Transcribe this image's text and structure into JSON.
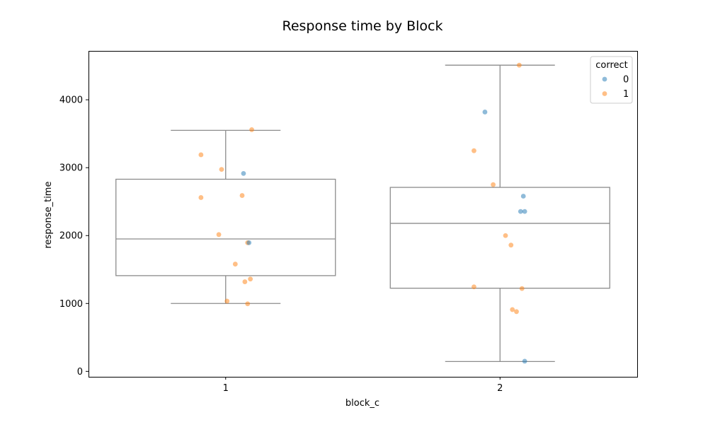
{
  "chart_data": {
    "type": "box",
    "title": "Response time by Block",
    "xlabel": "block_c",
    "ylabel": "response_time",
    "categories": [
      "1",
      "2"
    ],
    "ylim": [
      -80,
      4720
    ],
    "yticks": [
      0,
      1000,
      2000,
      3000,
      4000
    ],
    "grid": false,
    "legend": {
      "title": "correct",
      "placement": "top-right",
      "entries": [
        {
          "label": "0",
          "color": "#1f77b4"
        },
        {
          "label": "1",
          "color": "#ff7f0e"
        }
      ]
    },
    "box_color": "#8c8c8c",
    "boxes": [
      {
        "category": "1",
        "whisker_low": 1000,
        "q1": 1410,
        "median": 1950,
        "q3": 2830,
        "whisker_high": 3550
      },
      {
        "category": "2",
        "whisker_low": 145,
        "q1": 1225,
        "median": 2180,
        "q3": 2710,
        "whisker_high": 4510
      }
    ],
    "points": [
      {
        "category": "1",
        "x_offset": 0.095,
        "y": 3560,
        "correct": "1"
      },
      {
        "category": "1",
        "x_offset": -0.09,
        "y": 3190,
        "correct": "1"
      },
      {
        "category": "1",
        "x_offset": -0.015,
        "y": 2975,
        "correct": "1"
      },
      {
        "category": "1",
        "x_offset": 0.065,
        "y": 2915,
        "correct": "0"
      },
      {
        "category": "1",
        "x_offset": -0.09,
        "y": 2560,
        "correct": "1"
      },
      {
        "category": "1",
        "x_offset": 0.06,
        "y": 2590,
        "correct": "1"
      },
      {
        "category": "1",
        "x_offset": -0.025,
        "y": 2015,
        "correct": "1"
      },
      {
        "category": "1",
        "x_offset": 0.08,
        "y": 1895,
        "correct": "1"
      },
      {
        "category": "1",
        "x_offset": 0.085,
        "y": 1895,
        "correct": "0"
      },
      {
        "category": "1",
        "x_offset": 0.035,
        "y": 1580,
        "correct": "1"
      },
      {
        "category": "1",
        "x_offset": 0.09,
        "y": 1360,
        "correct": "1"
      },
      {
        "category": "1",
        "x_offset": 0.07,
        "y": 1320,
        "correct": "1"
      },
      {
        "category": "1",
        "x_offset": 0.005,
        "y": 1035,
        "correct": "1"
      },
      {
        "category": "1",
        "x_offset": 0.08,
        "y": 995,
        "correct": "1"
      },
      {
        "category": "2",
        "x_offset": 0.07,
        "y": 4510,
        "correct": "1"
      },
      {
        "category": "2",
        "x_offset": -0.055,
        "y": 3820,
        "correct": "0"
      },
      {
        "category": "2",
        "x_offset": -0.095,
        "y": 3250,
        "correct": "1"
      },
      {
        "category": "2",
        "x_offset": -0.025,
        "y": 2750,
        "correct": "1"
      },
      {
        "category": "2",
        "x_offset": 0.085,
        "y": 2580,
        "correct": "0"
      },
      {
        "category": "2",
        "x_offset": 0.075,
        "y": 2355,
        "correct": "0"
      },
      {
        "category": "2",
        "x_offset": 0.09,
        "y": 2355,
        "correct": "0"
      },
      {
        "category": "2",
        "x_offset": 0.02,
        "y": 2000,
        "correct": "1"
      },
      {
        "category": "2",
        "x_offset": 0.04,
        "y": 1860,
        "correct": "1"
      },
      {
        "category": "2",
        "x_offset": -0.095,
        "y": 1245,
        "correct": "1"
      },
      {
        "category": "2",
        "x_offset": 0.08,
        "y": 1220,
        "correct": "1"
      },
      {
        "category": "2",
        "x_offset": 0.045,
        "y": 910,
        "correct": "1"
      },
      {
        "category": "2",
        "x_offset": 0.06,
        "y": 880,
        "correct": "1"
      },
      {
        "category": "2",
        "x_offset": 0.09,
        "y": 150,
        "correct": "0"
      }
    ]
  }
}
